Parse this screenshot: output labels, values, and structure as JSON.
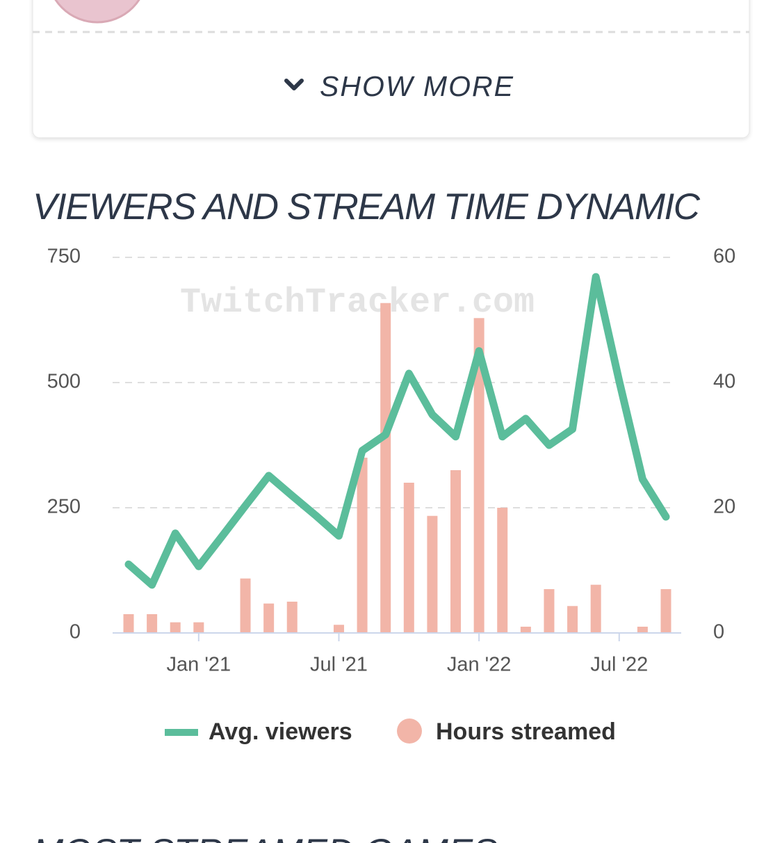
{
  "show_more": "SHOW MORE",
  "section_title": "VIEWERS AND STREAM TIME DYNAMIC",
  "next_section_title": "MOST STREAMED GAMES",
  "chart_data": {
    "type": "bar_line",
    "watermark": "TwitchTracker.com",
    "categories": [
      null,
      null,
      null,
      "Jan '21",
      null,
      null,
      null,
      null,
      null,
      "Jul '21",
      null,
      null,
      null,
      null,
      null,
      "Jan '22",
      null,
      null,
      null,
      null,
      null,
      "Jul '22",
      null,
      null
    ],
    "series": [
      {
        "name": "Avg. viewers",
        "type": "line",
        "axis": "y",
        "color": "#5bbd9b",
        "values": [
          137,
          96,
          199,
          133,
          193,
          254,
          314,
          274,
          235,
          194,
          364,
          396,
          518,
          436,
          392,
          563,
          392,
          428,
          375,
          407,
          711,
          503,
          307,
          232
        ]
      },
      {
        "name": "Hours streamed",
        "type": "bar",
        "axis": "y2",
        "color": "#f2b5a8",
        "values": [
          3,
          3,
          1.7,
          1.7,
          0,
          8.7,
          4.7,
          5,
          0,
          1.3,
          28,
          52.7,
          24,
          18.7,
          26,
          50.3,
          20,
          1,
          7,
          4.3,
          7.7,
          0,
          1,
          7
        ]
      }
    ],
    "ylim": [
      0,
      750
    ],
    "yticks": [
      0,
      250,
      500,
      750
    ],
    "y2lim": [
      0,
      60
    ],
    "y2ticks": [
      0,
      20,
      40,
      60
    ],
    "grid": true
  }
}
